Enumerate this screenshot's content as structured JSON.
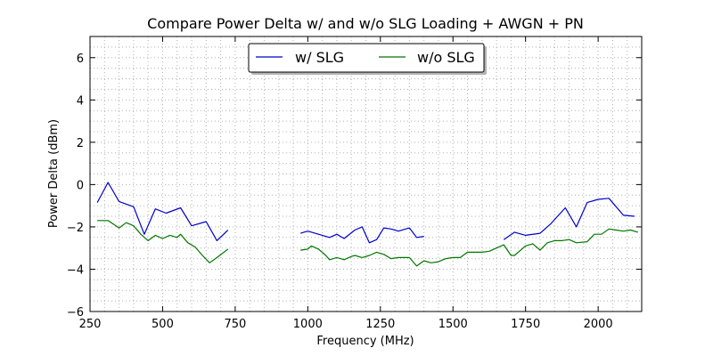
{
  "chart_data": {
    "type": "line",
    "title": "Compare Power Delta w/ and w/o SLG Loading + AWGN + PN",
    "xlabel": "Frequency (MHz)",
    "ylabel": "Power Delta (dBm)",
    "xlim": [
      250,
      2150
    ],
    "ylim": [
      -6,
      7
    ],
    "xticks": [
      250,
      500,
      750,
      1000,
      1250,
      1500,
      1750,
      2000
    ],
    "yticks": [
      -6,
      -4,
      -2,
      0,
      2,
      4,
      6
    ],
    "xtick_labels": [
      "250",
      "500",
      "750",
      "1000",
      "1250",
      "1500",
      "1750",
      "2000"
    ],
    "ytick_labels": [
      "−6",
      "−4",
      "−2",
      "0",
      "2",
      "4",
      "6"
    ],
    "grid": true,
    "legend": "top-center",
    "series": [
      {
        "name": "w/ SLG",
        "color": "#0000cc",
        "segments": [
          {
            "x": [
              275,
              312,
              350,
              400,
              437,
              475,
              512,
              562,
              600,
              650,
              687,
              725
            ],
            "y": [
              -0.85,
              0.1,
              -0.8,
              -1.05,
              -2.35,
              -1.15,
              -1.35,
              -1.1,
              -1.95,
              -1.75,
              -2.65,
              -2.15
            ]
          },
          {
            "x": [
              975,
              1000,
              1037,
              1075,
              1100,
              1125,
              1162,
              1187,
              1212,
              1237,
              1262,
              1287,
              1312,
              1350,
              1375,
              1400
            ],
            "y": [
              -2.3,
              -2.2,
              -2.35,
              -2.5,
              -2.35,
              -2.55,
              -2.15,
              -2.0,
              -2.75,
              -2.6,
              -2.05,
              -2.1,
              -2.2,
              -2.05,
              -2.5,
              -2.45
            ]
          },
          {
            "x": [
              1675,
              1712,
              1750,
              1800,
              1837,
              1887,
              1925,
              1962,
              2000,
              2037,
              2087,
              2125
            ],
            "y": [
              -2.6,
              -2.25,
              -2.4,
              -2.3,
              -1.85,
              -1.1,
              -2.0,
              -0.85,
              -0.7,
              -0.65,
              -1.45,
              -1.5
            ]
          }
        ]
      },
      {
        "name": "w/o SLG",
        "color": "#007700",
        "segments": [
          {
            "x": [
              275,
              312,
              350,
              375,
              400,
              425,
              450,
              475,
              500,
              525,
              550,
              562,
              587,
              612,
              637,
              662,
              687,
              725
            ],
            "y": [
              -1.7,
              -1.7,
              -2.05,
              -1.8,
              -1.95,
              -2.35,
              -2.65,
              -2.4,
              -2.55,
              -2.4,
              -2.5,
              -2.35,
              -2.75,
              -2.95,
              -3.35,
              -3.7,
              -3.45,
              -3.05
            ]
          },
          {
            "x": [
              975,
              1000,
              1012,
              1037,
              1062,
              1075,
              1100,
              1125,
              1150,
              1162,
              1187,
              1212,
              1237,
              1262,
              1287,
              1312,
              1350,
              1375,
              1400,
              1425,
              1450,
              1475,
              1500,
              1525,
              1550,
              1575,
              1600,
              1625,
              1650,
              1675,
              1700,
              1712,
              1750,
              1775,
              1800,
              1825,
              1850,
              1875,
              1900,
              1925,
              1962,
              1987,
              2012,
              2037,
              2062,
              2087,
              2112,
              2137
            ],
            "y": [
              -3.1,
              -3.05,
              -2.9,
              -3.05,
              -3.35,
              -3.55,
              -3.45,
              -3.55,
              -3.4,
              -3.35,
              -3.45,
              -3.35,
              -3.2,
              -3.3,
              -3.5,
              -3.45,
              -3.45,
              -3.85,
              -3.6,
              -3.7,
              -3.65,
              -3.5,
              -3.45,
              -3.45,
              -3.2,
              -3.2,
              -3.2,
              -3.15,
              -3.0,
              -2.85,
              -3.35,
              -3.35,
              -2.9,
              -2.8,
              -3.1,
              -2.75,
              -2.65,
              -2.65,
              -2.6,
              -2.75,
              -2.7,
              -2.35,
              -2.35,
              -2.1,
              -2.15,
              -2.2,
              -2.15,
              -2.25
            ]
          }
        ]
      }
    ]
  }
}
